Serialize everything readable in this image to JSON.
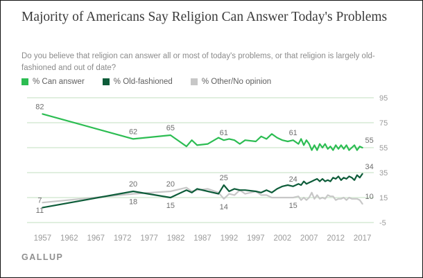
{
  "header": {
    "title": "Majority of Americans Say Religion Can Answer Today's Problems",
    "subtitle": "Do you believe that religion can answer all or most of today's problems, or that religion is largely old-fashioned and out of date?"
  },
  "brand": {
    "label": "GALLUP"
  },
  "style": {
    "grid_color": "#e0efdf",
    "axis_text_color": "#9b9b9b",
    "annotation_color": "#6d6d6d",
    "background": "#ffffff"
  },
  "chart_data": {
    "type": "line",
    "title": "Majority of Americans Say Religion Can Answer Today's Problems",
    "xlabel": "",
    "ylabel": "",
    "grid": "horizontal",
    "legend_position": "top",
    "xlim": [
      1955,
      2019
    ],
    "ylim": [
      -5,
      95
    ],
    "xticks": [
      1957,
      1962,
      1967,
      1972,
      1977,
      1982,
      1987,
      1992,
      1997,
      2002,
      2007,
      2012,
      2017
    ],
    "yticks": [
      95,
      75,
      55,
      35,
      15,
      -5
    ],
    "x": [
      1957,
      1974,
      1981,
      1984,
      1985,
      1986,
      1988,
      1990,
      1991,
      1992,
      1993,
      1994,
      1995,
      1997,
      1998,
      1999,
      2000,
      2001,
      2002,
      2003,
      2004,
      2005,
      2005.5,
      2006,
      2006.5,
      2007,
      2007.5,
      2008,
      2008.5,
      2009,
      2009.5,
      2010,
      2010.5,
      2011,
      2011.5,
      2012,
      2012.5,
      2013,
      2013.5,
      2014,
      2014.5,
      2015,
      2015.5,
      2016,
      2016.5,
      2017
    ],
    "series": [
      {
        "name": "% Can answer",
        "slug": "can-answer",
        "color": "#2cbd52",
        "values": [
          82,
          62,
          65,
          56,
          61,
          57,
          58,
          63,
          61,
          62,
          61,
          58,
          61,
          60,
          64,
          62,
          66,
          63,
          61,
          60,
          61,
          58,
          62,
          57,
          61,
          58,
          53,
          57,
          53,
          58,
          55,
          58,
          54,
          56,
          53,
          57,
          54,
          57,
          54,
          57,
          53,
          55,
          57,
          53,
          56,
          55
        ]
      },
      {
        "name": "% Old-fashioned",
        "slug": "old-fashioned",
        "color": "#0d5c39",
        "values": [
          7,
          20,
          15,
          21,
          19,
          22,
          20,
          18,
          25,
          20,
          22,
          21,
          21,
          20,
          19,
          21,
          19,
          22,
          24,
          25,
          24,
          26,
          25,
          28,
          26,
          27,
          28,
          29,
          30,
          28,
          30,
          28,
          29,
          28,
          31,
          30,
          32,
          29,
          31,
          30,
          32,
          31,
          29,
          33,
          31,
          34
        ]
      },
      {
        "name": "% Other/No opinion",
        "slug": "other-no-opinion",
        "color": "#c7c7c7",
        "values": [
          11,
          18,
          20,
          23,
          20,
          21,
          22,
          19,
          14,
          18,
          17,
          21,
          18,
          20,
          17,
          17,
          15,
          15,
          15,
          15,
          15,
          16,
          13,
          15,
          13,
          15,
          19,
          14,
          17,
          14,
          15,
          14,
          17,
          16,
          16,
          13,
          14,
          14,
          15,
          13,
          15,
          14,
          14,
          14,
          13,
          10
        ]
      }
    ],
    "annotations": [
      {
        "series": 0,
        "year": 1957,
        "value": 82,
        "label": "82",
        "pos": "above",
        "dx": -4
      },
      {
        "series": 0,
        "year": 1974,
        "value": 62,
        "label": "62",
        "pos": "above"
      },
      {
        "series": 0,
        "year": 1981,
        "value": 65,
        "label": "65",
        "pos": "above"
      },
      {
        "series": 0,
        "year": 1991,
        "value": 61,
        "label": "61",
        "pos": "above"
      },
      {
        "series": 0,
        "year": 2004,
        "value": 61,
        "label": "61",
        "pos": "above"
      },
      {
        "series": 0,
        "year": 2017,
        "value": 55,
        "label": "55",
        "pos": "above",
        "dx": 10
      },
      {
        "series": 1,
        "year": 1957,
        "value": 7,
        "label": "7",
        "pos": "above",
        "dx": -4
      },
      {
        "series": 1,
        "year": 1974,
        "value": 20,
        "label": "20",
        "pos": "above"
      },
      {
        "series": 1,
        "year": 1981,
        "value": 15,
        "label": "15",
        "pos": "below"
      },
      {
        "series": 1,
        "year": 1991,
        "value": 25,
        "label": "25",
        "pos": "above"
      },
      {
        "series": 1,
        "year": 2004,
        "value": 24,
        "label": "24",
        "pos": "above"
      },
      {
        "series": 1,
        "year": 2017,
        "value": 34,
        "label": "34",
        "pos": "above",
        "dx": 10
      },
      {
        "series": 2,
        "year": 1957,
        "value": 11,
        "label": "11",
        "pos": "below",
        "dx": -4
      },
      {
        "series": 2,
        "year": 1974,
        "value": 18,
        "label": "18",
        "pos": "below"
      },
      {
        "series": 2,
        "year": 1981,
        "value": 20,
        "label": "20",
        "pos": "above"
      },
      {
        "series": 2,
        "year": 1991,
        "value": 14,
        "label": "14",
        "pos": "below"
      },
      {
        "series": 2,
        "year": 2004,
        "value": 15,
        "label": "15",
        "pos": "below"
      },
      {
        "series": 2,
        "year": 2017,
        "value": 10,
        "label": "10",
        "pos": "above",
        "dx": 10
      }
    ]
  }
}
